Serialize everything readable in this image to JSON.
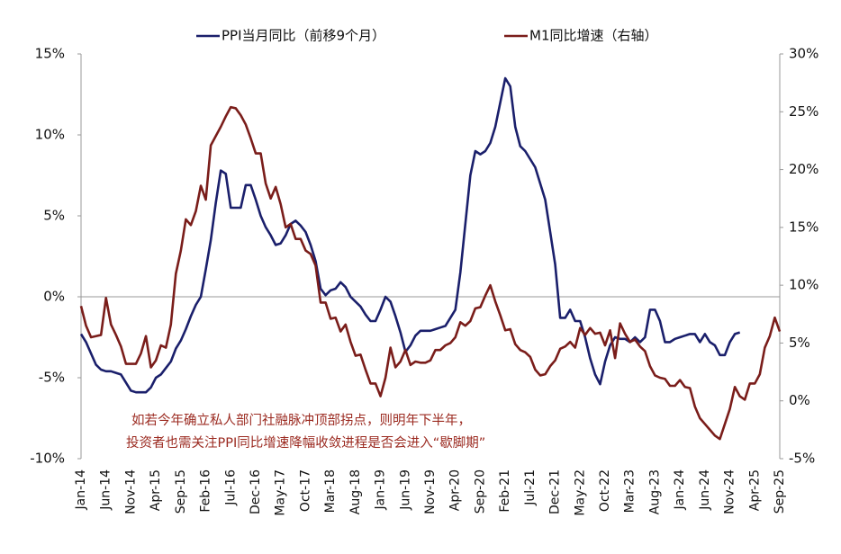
{
  "chart_data": {
    "type": "line",
    "categories": [
      "Jan-14",
      null,
      null,
      null,
      null,
      "Jun-14",
      null,
      null,
      null,
      null,
      "Nov-14",
      null,
      null,
      null,
      null,
      "Apr-15",
      null,
      null,
      null,
      null,
      "Sep-15",
      null,
      null,
      null,
      null,
      "Feb-16",
      null,
      null,
      null,
      null,
      "Jul-16",
      null,
      null,
      null,
      null,
      "Dec-16",
      null,
      null,
      null,
      null,
      "May-17",
      null,
      null,
      null,
      null,
      "Oct-17",
      null,
      null,
      null,
      null,
      "Mar-18",
      null,
      null,
      null,
      null,
      "Aug-18",
      null,
      null,
      null,
      null,
      "Jan-19",
      null,
      null,
      null,
      null,
      "Jun-19",
      null,
      null,
      null,
      null,
      "Nov-19",
      null,
      null,
      null,
      null,
      "Apr-20",
      null,
      null,
      null,
      null,
      "Sep-20",
      null,
      null,
      null,
      null,
      "Feb-21",
      null,
      null,
      null,
      null,
      "Jul-21",
      null,
      null,
      null,
      null,
      "Dec-21",
      null,
      null,
      null,
      null,
      "May-22",
      null,
      null,
      null,
      null,
      "Oct-22",
      null,
      null,
      null,
      null,
      "Mar-23",
      null,
      null,
      null,
      null,
      "Aug-23",
      null,
      null,
      null,
      null,
      "Jan-24",
      null,
      null,
      null,
      null,
      "Jun-24",
      null,
      null,
      null,
      null,
      "Nov-24",
      null,
      null,
      null,
      null,
      "Apr-25",
      null,
      null,
      null,
      null,
      "Sep-25"
    ],
    "series": [
      {
        "name": "PPI当月同比（前移9个月）",
        "color": "#1a1f6b",
        "axis": "y",
        "values": [
          -2.3,
          -2.8,
          -3.5,
          -4.2,
          -4.5,
          -4.6,
          -4.6,
          -4.7,
          -4.8,
          -5.3,
          -5.8,
          -5.9,
          -5.9,
          -5.9,
          -5.6,
          -5.0,
          -4.8,
          -4.4,
          -4.0,
          -3.2,
          -2.7,
          -2.0,
          -1.2,
          -0.5,
          0,
          1.7,
          3.5,
          5.8,
          7.8,
          7.6,
          5.5,
          5.5,
          5.5,
          6.9,
          6.9,
          6.0,
          5.0,
          4.3,
          3.8,
          3.2,
          3.3,
          3.8,
          4.5,
          4.7,
          4.4,
          4.0,
          3.2,
          2.2,
          0.5,
          0.1,
          0.4,
          0.5,
          0.9,
          0.6,
          0.0,
          -0.3,
          -0.6,
          -1.1,
          -1.5,
          -1.5,
          -0.8,
          0.0,
          -0.3,
          -1.2,
          -2.2,
          -3.4,
          -3.0,
          -2.4,
          -2.1,
          -2.1,
          -2.1,
          -2.0,
          -1.9,
          -1.8,
          -1.3,
          -0.8,
          1.5,
          4.5,
          7.5,
          9.0,
          8.8,
          9.0,
          9.5,
          10.5,
          12.0,
          13.5,
          13.0,
          10.5,
          9.3,
          9.0,
          8.5,
          8.0,
          7.0,
          6.0,
          4.0,
          2.0,
          -1.3,
          -1.3,
          -0.8,
          -1.5,
          -1.5,
          -2.5,
          -3.8,
          -4.8,
          -5.4,
          -4.0,
          -3.0,
          -2.5,
          -2.6,
          -2.6,
          -2.8,
          -2.5,
          -2.8,
          -2.5,
          -0.8,
          -0.8,
          -1.5,
          -2.8,
          -2.8,
          -2.6,
          -2.5,
          -2.4,
          -2.3,
          -2.3,
          -2.8,
          -2.3,
          -2.8,
          -3.0,
          -3.6,
          -3.6,
          -2.8,
          -2.3,
          -2.2,
          null,
          null,
          null,
          null,
          null,
          null,
          null,
          null
        ]
      },
      {
        "name": "M1同比增速（右轴）",
        "color": "#7a1d1a",
        "axis": "y2",
        "values": [
          8.2,
          6.5,
          5.5,
          5.6,
          5.7,
          8.9,
          6.6,
          5.7,
          4.7,
          3.2,
          3.2,
          3.2,
          4.1,
          5.6,
          2.9,
          3.5,
          4.8,
          4.6,
          6.6,
          11.0,
          13.0,
          15.7,
          15.2,
          16.4,
          18.6,
          17.4,
          22.1,
          22.9,
          23.7,
          24.6,
          25.4,
          25.3,
          24.7,
          23.9,
          22.7,
          21.4,
          21.4,
          18.8,
          17.5,
          18.5,
          17.0,
          15.0,
          15.3,
          14.0,
          14.0,
          13.0,
          12.7,
          11.7,
          8.5,
          8.5,
          7.1,
          7.2,
          6.0,
          6.6,
          5.1,
          3.9,
          4.0,
          2.7,
          1.5,
          1.5,
          0.4,
          2.0,
          4.6,
          2.9,
          3.4,
          4.4,
          3.1,
          3.4,
          3.3,
          3.3,
          3.5,
          4.4,
          4.4,
          4.8,
          5.0,
          5.5,
          6.8,
          6.5,
          6.9,
          8.0,
          8.1,
          9.1,
          10.0,
          8.6,
          7.4,
          6.1,
          6.2,
          4.9,
          4.4,
          4.2,
          3.8,
          2.7,
          2.2,
          2.3,
          3.0,
          3.5,
          4.5,
          4.7,
          5.1,
          4.6,
          6.3,
          5.7,
          6.3,
          5.8,
          5.9,
          4.8,
          6.1,
          3.7,
          6.7,
          5.8,
          5.1,
          5.3,
          4.7,
          4.3,
          3.0,
          2.2,
          2.0,
          1.9,
          1.3,
          1.3,
          1.8,
          1.2,
          1.1,
          -0.5,
          -1.5,
          -2.0,
          -2.5,
          -3.0,
          -3.3,
          -2.0,
          -0.7,
          1.2,
          0.4,
          0.1,
          1.5,
          1.5,
          2.3,
          4.6,
          5.6,
          7.2,
          6.0
        ]
      }
    ],
    "ylim": [
      -10,
      15
    ],
    "yticks": [
      {
        "value": -10,
        "label": "-10%"
      },
      {
        "value": -5,
        "label": "-5%"
      },
      {
        "value": 0,
        "label": "0%"
      },
      {
        "value": 5,
        "label": "5%"
      },
      {
        "value": 10,
        "label": "10%"
      },
      {
        "value": 15,
        "label": "15%"
      }
    ],
    "y2lim": [
      -5,
      30
    ],
    "y2ticks": [
      {
        "value": -5,
        "label": "-5%"
      },
      {
        "value": 0,
        "label": "0%"
      },
      {
        "value": 5,
        "label": "5%"
      },
      {
        "value": 10,
        "label": "10%"
      },
      {
        "value": 15,
        "label": "15%"
      },
      {
        "value": 20,
        "label": "20%"
      },
      {
        "value": 25,
        "label": "25%"
      },
      {
        "value": 30,
        "label": "30%"
      }
    ],
    "legend": "top",
    "annotations": [
      "如若今年确立私人部门社融脉冲顶部拐点，则明年下半年，",
      "投资者也需关注PPI同比增速降幅收敛进程是否会进入“歇脚期”"
    ]
  }
}
